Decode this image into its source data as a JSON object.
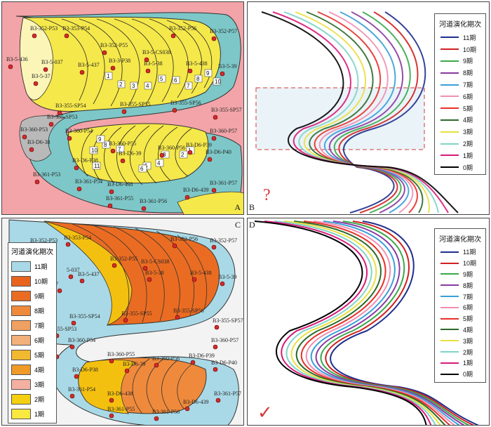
{
  "panels": {
    "a": "A",
    "b": "B",
    "c": "C",
    "d": "D"
  },
  "legend": {
    "title": "河道演化期次",
    "items": [
      {
        "label": "11期",
        "color": "#1f2f8f"
      },
      {
        "label": "10期",
        "color": "#d02020"
      },
      {
        "label": "9期",
        "color": "#3aa84a"
      },
      {
        "label": "8期",
        "color": "#8a3aa0"
      },
      {
        "label": "7期",
        "color": "#3a9fd8"
      },
      {
        "label": "6期",
        "color": "#f08fb0"
      },
      {
        "label": "5期",
        "color": "#e8302a"
      },
      {
        "label": "4期",
        "color": "#2c6a2a"
      },
      {
        "label": "3期",
        "color": "#e8e040"
      },
      {
        "label": "2期",
        "color": "#7fd4c8"
      },
      {
        "label": "1期",
        "color": "#d81b7a"
      },
      {
        "label": "0期",
        "color": "#000000"
      }
    ]
  },
  "legendC": {
    "title": "河道演化期次",
    "items": [
      {
        "label": "11期",
        "color": "#a9d9e6"
      },
      {
        "label": "10期",
        "color": "#e8641c"
      },
      {
        "label": "9期",
        "color": "#ea6c22"
      },
      {
        "label": "8期",
        "color": "#ef8a3c"
      },
      {
        "label": "7期",
        "color": "#f0a060"
      },
      {
        "label": "6期",
        "color": "#f2b07a"
      },
      {
        "label": "5期",
        "color": "#f2b830"
      },
      {
        "label": "4期",
        "color": "#f09a28"
      },
      {
        "label": "3期",
        "color": "#f4b0a0"
      },
      {
        "label": "2期",
        "color": "#f4d010"
      },
      {
        "label": "1期",
        "color": "#f8e840"
      }
    ]
  },
  "marks": {
    "question": "?",
    "check": "✓",
    "small_q": "?"
  },
  "wellsA": [
    "B3-352-P53",
    "B3-353-P54",
    "B3-352-P56",
    "B3-352-P57",
    "B3-5-436",
    "B3-5-037",
    "B3-352-P55",
    "B3-5-CS038",
    "B3-5-437",
    "B3-3-P38",
    "B3-5-38",
    "B3-5-438",
    "B3-5-39",
    "B3-5-37",
    "B3-355-SP54",
    "B3-355-SP55",
    "B3-355-SP56",
    "B3-355-SP57",
    "B3-355-SP53",
    "B3-360-P53",
    "B3-360-P54",
    "B3-360-P57",
    "B3-D6-38",
    "B3-360-P55",
    "B3-360-P56",
    "B3-D6-P39",
    "B3-D6-P40",
    "B3-D6-39",
    "B3-D6-P38",
    "B3-361-P53",
    "B3-361-P54",
    "B3-D6-438",
    "B3-D6-439",
    "B3-361-P57",
    "B3-361-P55",
    "B3-361-P56"
  ],
  "wellsC": [
    "B3-352-P53",
    "B3-353-P54",
    "B3-352-P56",
    "B3-352-P57",
    "B3-352-P55",
    "B3-5-CS038",
    "5-037",
    "B3-5-437",
    "B3-5-38",
    "B3-5-438",
    "B3-5-39",
    "7",
    "B3-355-SP54",
    "B3-355-SP55",
    "B3-355-SP56",
    "B3-355-SP57",
    "-355-SP53",
    "B3-360-P54",
    "B3-360-P57",
    "8",
    "B3-360-P55",
    "B3-D6-39",
    "B3-D6-P38",
    "B3-360-P56",
    "B3-D6-P39",
    "B3-D6-P40",
    "B3-361-P54",
    "B3-D6-438",
    "B3-361-P57",
    "B3-361-P55",
    "B3-D6-439",
    "B3-361-P56"
  ],
  "numbersA": [
    "1",
    "2",
    "3",
    "4",
    "5",
    "6",
    "7",
    "8",
    "9",
    "10",
    "1",
    "2",
    "3",
    "4",
    "5",
    "6",
    "7",
    "8",
    "9",
    "10",
    "11"
  ]
}
